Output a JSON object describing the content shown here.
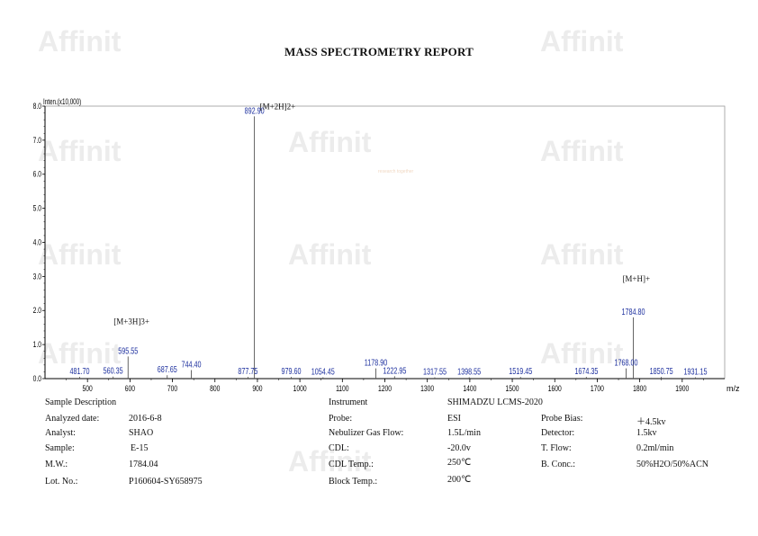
{
  "report": {
    "title": "MASS SPECTROMETRY REPORT",
    "watermark_brand": "Affinit",
    "watermark_tagline": "research together"
  },
  "chart_data": {
    "type": "bar",
    "title": "",
    "ylabel": "Inten.(x10,000)",
    "xlabel": "m/z",
    "xlim": [
      400,
      2000
    ],
    "ylim": [
      0,
      8.0
    ],
    "x_ticks": [
      500,
      600,
      700,
      800,
      900,
      1000,
      1100,
      1200,
      1300,
      1400,
      1500,
      1600,
      1700,
      1800,
      1900
    ],
    "y_ticks": [
      "0.0",
      "1.0",
      "2.0",
      "3.0",
      "4.0",
      "5.0",
      "6.0",
      "7.0",
      "8.0"
    ],
    "peaks": [
      {
        "mz": 481.7,
        "label": "481.70",
        "intensity": 0.05
      },
      {
        "mz": 560.35,
        "label": "560.35",
        "intensity": 0.06
      },
      {
        "mz": 595.55,
        "label": "595.55",
        "intensity": 0.65
      },
      {
        "mz": 687.65,
        "label": "687.65",
        "intensity": 0.1
      },
      {
        "mz": 744.4,
        "label": "744.40",
        "intensity": 0.25
      },
      {
        "mz": 877.75,
        "label": "877.75",
        "intensity": 0.05
      },
      {
        "mz": 892.9,
        "label": "892.90",
        "intensity": 7.7
      },
      {
        "mz": 979.6,
        "label": "979.60",
        "intensity": 0.05
      },
      {
        "mz": 1054.45,
        "label": "1054.45",
        "intensity": 0.04
      },
      {
        "mz": 1178.9,
        "label": "1178.90",
        "intensity": 0.3
      },
      {
        "mz": 1222.95,
        "label": "1222.95",
        "intensity": 0.07
      },
      {
        "mz": 1317.55,
        "label": "1317.55",
        "intensity": 0.04
      },
      {
        "mz": 1398.55,
        "label": "1398.55",
        "intensity": 0.04
      },
      {
        "mz": 1519.45,
        "label": "1519.45",
        "intensity": 0.05
      },
      {
        "mz": 1674.35,
        "label": "1674.35",
        "intensity": 0.05
      },
      {
        "mz": 1768.0,
        "label": "1768.00",
        "intensity": 0.3
      },
      {
        "mz": 1784.8,
        "label": "1784.80",
        "intensity": 1.8
      },
      {
        "mz": 1850.75,
        "label": "1850.75",
        "intensity": 0.05
      },
      {
        "mz": 1931.15,
        "label": "1931.15",
        "intensity": 0.04
      }
    ],
    "annotations": [
      {
        "text": "[M+2H]2+",
        "mz": 892.9
      },
      {
        "text": "[M+3H]3+",
        "mz": 595.55
      },
      {
        "text": "[M+H]+",
        "mz": 1784.8
      }
    ],
    "grid": false,
    "legend": "none"
  },
  "info": {
    "sample_description": "Sample Description",
    "analyzed_date_label": "Analyzed date:",
    "analyzed_date": "2016-6-8",
    "analyst_label": "Analyst:",
    "analyst": "SHAO",
    "sample_label": "Sample:",
    "sample": "E-15",
    "mw_label": "M.W.:",
    "mw": "1784.04",
    "lot_label": "Lot. No.:",
    "lot": "P160604-SY658975",
    "instrument_label": "Instrument",
    "instrument": "SHIMADZU LCMS-2020",
    "probe_label": "Probe:",
    "probe": "ESI",
    "nebulizer_label": "Nebulizer Gas Flow:",
    "nebulizer": "1.5L/min",
    "cdl_label": "CDL:",
    "cdl": "-20.0v",
    "cdl_temp_label": "CDL Temp.:",
    "cdl_temp": "250℃",
    "block_temp_label": "Block Temp.:",
    "block_temp": "200℃",
    "probe_bias_label": "Probe Bias:",
    "probe_bias": "＋4.5kv",
    "detector_label": "Detector:",
    "detector": "1.5kv",
    "tflow_label": "T. Flow:",
    "tflow": "0.2ml/min",
    "bconc_label": "B. Conc.:",
    "bconc": "50%H2O/50%ACN"
  }
}
